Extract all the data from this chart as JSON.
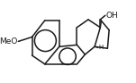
{
  "background_color": "#ffffff",
  "line_color": "#1a1a1a",
  "line_width": 1.1,
  "text_color": "#1a1a1a",
  "font_size": 6.5,
  "meo_label": "MeO",
  "oh_label": "OH",
  "h_label": "H",
  "xlim": [
    -0.5,
    10.5
  ],
  "ylim": [
    -0.3,
    6.8
  ]
}
